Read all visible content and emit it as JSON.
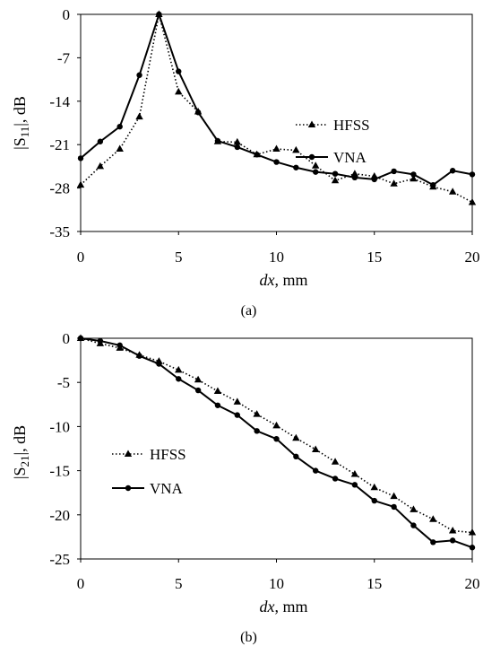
{
  "panels": [
    {
      "caption": "(a)",
      "chart_data": {
        "type": "line",
        "xlabel": "dx, mm",
        "ylabel": "|S11|, dB",
        "xlim": [
          0,
          20
        ],
        "ylim": [
          -35,
          0
        ],
        "xticks": [
          "0",
          "5",
          "10",
          "15",
          "20"
        ],
        "yticks": [
          "0",
          "-7",
          "-14",
          "-21",
          "-28",
          "-35"
        ],
        "grid": false,
        "legend": "right",
        "x": [
          0,
          1,
          2,
          3,
          4,
          5,
          6,
          7,
          8,
          9,
          10,
          11,
          12,
          13,
          14,
          15,
          16,
          17,
          18,
          19,
          20
        ],
        "series": [
          {
            "name": "HFSS",
            "style": "dotted",
            "marker": "triangle",
            "values": [
              -27.5,
              -24.5,
              -21.7,
              -16.5,
              0,
              -12.5,
              -15.7,
              -20.5,
              -20.6,
              -22.6,
              -21.7,
              -21.9,
              -24.4,
              -26.8,
              -25.7,
              -26.1,
              -27.3,
              -26.5,
              -27.8,
              -28.6,
              -30.3
            ]
          },
          {
            "name": "VNA",
            "style": "solid",
            "marker": "circle",
            "values": [
              -23.2,
              -20.5,
              -18.1,
              -9.8,
              0,
              -9.2,
              -15.8,
              -20.4,
              -21.4,
              -22.6,
              -23.8,
              -24.7,
              -25.4,
              -25.7,
              -26.3,
              -26.6,
              -25.3,
              -25.8,
              -27.5,
              -25.2,
              -25.8
            ]
          }
        ]
      }
    },
    {
      "caption": "(b)",
      "chart_data": {
        "type": "line",
        "xlabel": "dx, mm",
        "ylabel": "|S21|, dB",
        "xlim": [
          0,
          20
        ],
        "ylim": [
          -25,
          0
        ],
        "xticks": [
          "0",
          "5",
          "10",
          "15",
          "20"
        ],
        "yticks": [
          "0",
          "-5",
          "-10",
          "-15",
          "-20",
          "-25"
        ],
        "grid": false,
        "legend": "left-middle",
        "x": [
          0,
          1,
          2,
          3,
          4,
          5,
          6,
          7,
          8,
          9,
          10,
          11,
          12,
          13,
          14,
          15,
          16,
          17,
          18,
          19,
          20
        ],
        "series": [
          {
            "name": "HFSS",
            "style": "dotted",
            "marker": "triangle",
            "values": [
              0,
              -0.6,
              -1.1,
              -1.9,
              -2.6,
              -3.6,
              -4.7,
              -6.0,
              -7.2,
              -8.6,
              -9.9,
              -11.3,
              -12.6,
              -14.0,
              -15.4,
              -16.9,
              -17.9,
              -19.4,
              -20.5,
              -21.8,
              -22.0
            ]
          },
          {
            "name": "VNA",
            "style": "solid",
            "marker": "circle",
            "values": [
              0,
              -0.3,
              -0.8,
              -2.0,
              -2.9,
              -4.6,
              -5.9,
              -7.6,
              -8.7,
              -10.5,
              -11.4,
              -13.4,
              -15.0,
              -15.9,
              -16.6,
              -18.4,
              -19.1,
              -21.2,
              -23.1,
              -22.9,
              -23.7
            ]
          }
        ]
      }
    }
  ]
}
